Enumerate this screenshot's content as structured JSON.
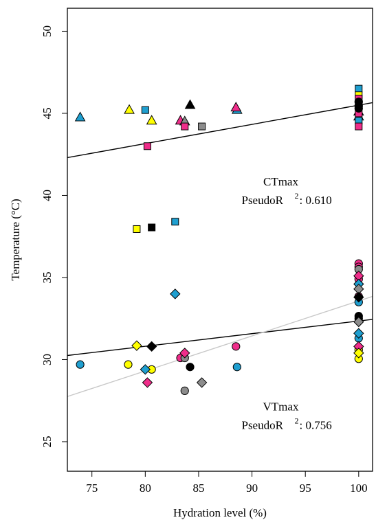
{
  "chart_data": {
    "type": "scatter",
    "xlabel": "Hydration level (%)",
    "ylabel": "Temperature (°C)",
    "xlim": [
      72.7,
      101.3
    ],
    "ylim": [
      23.2,
      51.4
    ],
    "xticks": [
      75,
      80,
      85,
      90,
      95,
      100
    ],
    "yticks": [
      25,
      30,
      35,
      40,
      45,
      50
    ],
    "grid": false,
    "colors": {
      "cyan": "#1f9fd0",
      "yellow": "#ffff00",
      "magenta": "#ef2d8a",
      "black": "#000000",
      "gray": "#8c8c8c"
    },
    "annotations": [
      {
        "name": "ctmax-label",
        "lines": [
          "CTmax",
          "PseudoR",
          "2",
          ": 0.610"
        ],
        "x": 92.7,
        "y": 40.6
      },
      {
        "name": "vtmax-label",
        "lines": [
          "VTmax",
          "PseudoR",
          "2",
          ": 0.756"
        ],
        "x": 92.7,
        "y": 26.9
      }
    ],
    "fit_lines": [
      {
        "name": "ctmax-fit-line",
        "color": "#000000",
        "x": [
          72.7,
          101.3
        ],
        "y": [
          42.3,
          45.65
        ]
      },
      {
        "name": "vtmax-fit-line-black",
        "color": "#000000",
        "x": [
          72.7,
          101.3
        ],
        "y": [
          30.25,
          32.45
        ]
      },
      {
        "name": "vtmax-fit-line-gray",
        "color": "#c8c8c8",
        "x": [
          72.7,
          101.3
        ],
        "y": [
          27.75,
          33.85
        ]
      }
    ],
    "points": [
      {
        "shape": "triangle",
        "color": "cyan",
        "x": 73.9,
        "y": 44.75
      },
      {
        "shape": "triangle",
        "color": "yellow",
        "x": 78.5,
        "y": 45.2
      },
      {
        "shape": "triangle",
        "color": "yellow",
        "x": 80.6,
        "y": 44.55
      },
      {
        "shape": "triangle",
        "color": "magenta",
        "x": 83.3,
        "y": 44.55
      },
      {
        "shape": "triangle",
        "color": "gray",
        "x": 83.7,
        "y": 44.5
      },
      {
        "shape": "triangle",
        "color": "black",
        "x": 84.2,
        "y": 45.5
      },
      {
        "shape": "triangle",
        "color": "cyan",
        "x": 88.6,
        "y": 45.2
      },
      {
        "shape": "triangle",
        "color": "magenta",
        "x": 88.5,
        "y": 45.35
      },
      {
        "shape": "triangle",
        "color": "cyan",
        "x": 100,
        "y": 44.8
      },
      {
        "shape": "triangle",
        "color": "black",
        "x": 100,
        "y": 45.1
      },
      {
        "shape": "square",
        "color": "cyan",
        "x": 80.0,
        "y": 45.2
      },
      {
        "shape": "square",
        "color": "magenta",
        "x": 80.2,
        "y": 43.0
      },
      {
        "shape": "square",
        "color": "magenta",
        "x": 83.7,
        "y": 44.2
      },
      {
        "shape": "square",
        "color": "gray",
        "x": 85.3,
        "y": 44.2
      },
      {
        "shape": "square",
        "color": "yellow",
        "x": 79.2,
        "y": 37.95
      },
      {
        "shape": "square",
        "color": "black",
        "x": 80.6,
        "y": 38.05
      },
      {
        "shape": "square",
        "color": "cyan",
        "x": 82.8,
        "y": 38.4
      },
      {
        "shape": "square",
        "color": "cyan",
        "x": 100,
        "y": 46.5
      },
      {
        "shape": "square",
        "color": "yellow",
        "x": 100,
        "y": 46.1
      },
      {
        "shape": "square",
        "color": "magenta",
        "x": 100,
        "y": 45.9
      },
      {
        "shape": "square",
        "color": "gray",
        "x": 100,
        "y": 45.6
      },
      {
        "shape": "square",
        "color": "magenta",
        "x": 100,
        "y": 45.0
      },
      {
        "shape": "square",
        "color": "cyan",
        "x": 100,
        "y": 44.55
      },
      {
        "shape": "square",
        "color": "magenta",
        "x": 100,
        "y": 44.2
      },
      {
        "shape": "circle",
        "color": "black",
        "x": 100,
        "y": 45.7
      },
      {
        "shape": "circle",
        "color": "black",
        "x": 100,
        "y": 45.3
      },
      {
        "shape": "circle",
        "color": "black",
        "x": 100,
        "y": 45.45
      },
      {
        "shape": "circle",
        "color": "cyan",
        "x": 73.9,
        "y": 29.7
      },
      {
        "shape": "circle",
        "color": "yellow",
        "x": 78.4,
        "y": 29.7
      },
      {
        "shape": "circle",
        "color": "yellow",
        "x": 80.6,
        "y": 29.4
      },
      {
        "shape": "circle",
        "color": "magenta",
        "x": 83.3,
        "y": 30.1
      },
      {
        "shape": "circle",
        "color": "gray",
        "x": 83.7,
        "y": 30.1
      },
      {
        "shape": "circle",
        "color": "gray",
        "x": 83.7,
        "y": 28.1
      },
      {
        "shape": "circle",
        "color": "black",
        "x": 84.2,
        "y": 29.55
      },
      {
        "shape": "circle",
        "color": "magenta",
        "x": 88.5,
        "y": 30.8
      },
      {
        "shape": "circle",
        "color": "cyan",
        "x": 88.6,
        "y": 29.55
      },
      {
        "shape": "circle",
        "color": "magenta",
        "x": 100,
        "y": 35.85
      },
      {
        "shape": "circle",
        "color": "magenta",
        "x": 100,
        "y": 35.65
      },
      {
        "shape": "circle",
        "color": "gray",
        "x": 100,
        "y": 35.5
      },
      {
        "shape": "circle",
        "color": "magenta",
        "x": 100,
        "y": 34.9
      },
      {
        "shape": "circle",
        "color": "cyan",
        "x": 100,
        "y": 33.5
      },
      {
        "shape": "circle",
        "color": "magenta",
        "x": 100,
        "y": 33.85
      },
      {
        "shape": "circle",
        "color": "black",
        "x": 100,
        "y": 32.65
      },
      {
        "shape": "circle",
        "color": "black",
        "x": 100,
        "y": 32.5
      },
      {
        "shape": "circle",
        "color": "cyan",
        "x": 100,
        "y": 31.3
      },
      {
        "shape": "circle",
        "color": "yellow",
        "x": 100,
        "y": 30.6
      },
      {
        "shape": "circle",
        "color": "yellow",
        "x": 100,
        "y": 30.05
      },
      {
        "shape": "diamond",
        "color": "cyan",
        "x": 82.8,
        "y": 34.0
      },
      {
        "shape": "diamond",
        "color": "yellow",
        "x": 79.2,
        "y": 30.85
      },
      {
        "shape": "diamond",
        "color": "black",
        "x": 80.6,
        "y": 30.8
      },
      {
        "shape": "diamond",
        "color": "cyan",
        "x": 80.0,
        "y": 29.4
      },
      {
        "shape": "diamond",
        "color": "magenta",
        "x": 80.2,
        "y": 28.6
      },
      {
        "shape": "diamond",
        "color": "magenta",
        "x": 83.7,
        "y": 30.4
      },
      {
        "shape": "diamond",
        "color": "gray",
        "x": 85.3,
        "y": 28.6
      },
      {
        "shape": "diamond",
        "color": "magenta",
        "x": 100,
        "y": 35.1
      },
      {
        "shape": "diamond",
        "color": "cyan",
        "x": 100,
        "y": 34.6
      },
      {
        "shape": "diamond",
        "color": "gray",
        "x": 100,
        "y": 34.3
      },
      {
        "shape": "diamond",
        "color": "black",
        "x": 100,
        "y": 33.8
      },
      {
        "shape": "diamond",
        "color": "gray",
        "x": 100,
        "y": 32.3
      },
      {
        "shape": "diamond",
        "color": "cyan",
        "x": 100,
        "y": 31.6
      },
      {
        "shape": "diamond",
        "color": "magenta",
        "x": 100,
        "y": 30.8
      },
      {
        "shape": "diamond",
        "color": "yellow",
        "x": 100,
        "y": 30.4
      }
    ]
  }
}
